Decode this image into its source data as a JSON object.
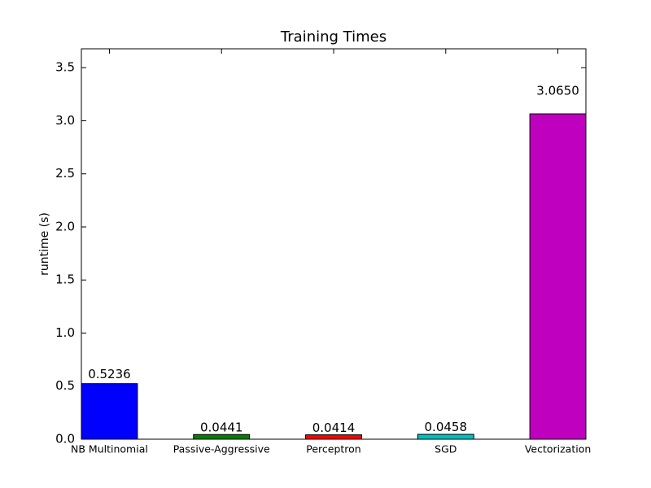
{
  "chart_data": {
    "type": "bar",
    "title": "Training Times",
    "y_label": "runtime (s)",
    "categories": [
      "NB Multinomial",
      "Passive-Aggressive",
      "Perceptron",
      "SGD",
      "Vectorization"
    ],
    "values": [
      0.5236,
      0.0441,
      0.0414,
      0.0458,
      3.065
    ],
    "value_labels": [
      "0.5236",
      "0.0441",
      "0.0414",
      "0.0458",
      "3.0650"
    ],
    "colors": [
      "#0000ff",
      "#008000",
      "#ff0000",
      "#00bfbf",
      "#bf00bf"
    ],
    "ylim": [
      0,
      3.678
    ],
    "yticks": [
      {
        "value": 0,
        "label": "0.0"
      },
      0.5,
      {
        "value": 1,
        "label": "1.0"
      },
      1.5,
      {
        "value": 2,
        "label": "2.0"
      },
      2.5,
      {
        "value": 3,
        "label": "3.0"
      },
      3.5
    ]
  }
}
